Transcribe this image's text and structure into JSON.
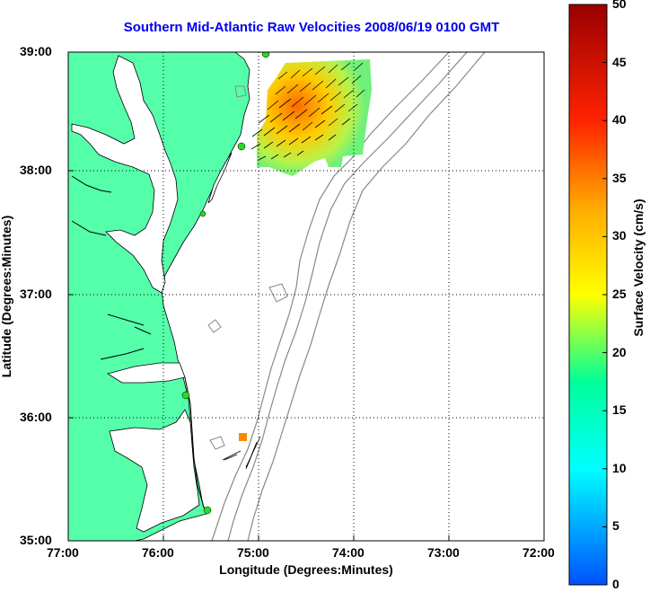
{
  "title": "Southern Mid-Atlantic Raw Velocities 2008/06/19 0100 GMT",
  "x_axis_label": "Longitude (Degrees:Minutes)",
  "y_axis_label": "Latitude (Degrees:Minutes)",
  "colorbar_label": "Surface Velocity (cm/s)",
  "x_ticks": [
    "77:00",
    "76:00",
    "75:00",
    "74:00",
    "73:00",
    "72:00"
  ],
  "y_ticks": [
    "39:00",
    "38:00",
    "37:00",
    "36:00",
    "35:00"
  ],
  "colorbar_ticks": [
    "50",
    "45",
    "40",
    "35",
    "30",
    "25",
    "20",
    "15",
    "10",
    "5",
    "0"
  ],
  "colors": {
    "land": "#55ffaa",
    "grid": "#000000",
    "bathymetry": "#888888",
    "stations": "#22dd22",
    "title": "#0000ee"
  }
}
